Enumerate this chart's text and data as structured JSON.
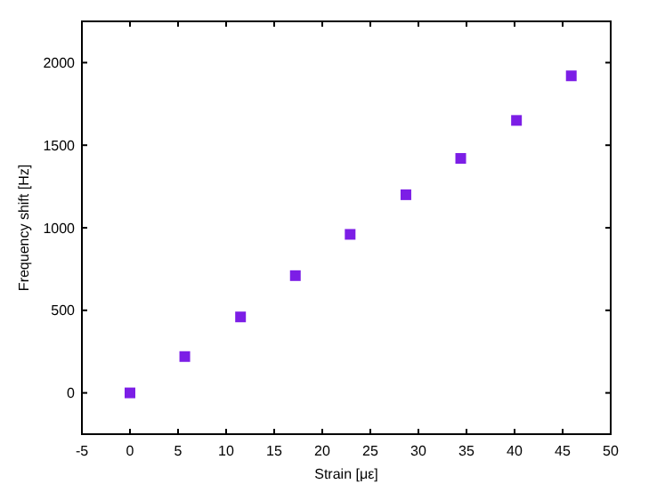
{
  "chart_data": {
    "type": "scatter",
    "xlabel": "Strain [με]",
    "ylabel": "Frequency shift [Hz]",
    "x": [
      0,
      5.7,
      11.5,
      17.2,
      22.9,
      28.7,
      34.4,
      40.2,
      45.9
    ],
    "series": [
      {
        "color": "#7c1ee6",
        "values": [
          0,
          220,
          460,
          710,
          960,
          1200,
          1420,
          1650,
          1920
        ]
      }
    ],
    "xlim": [
      -5,
      50
    ],
    "xticks": [
      -5,
      0,
      5,
      10,
      15,
      20,
      25,
      30,
      35,
      40,
      45,
      50
    ],
    "ylim": [
      -250,
      2250
    ],
    "yticks": [
      0,
      500,
      1000,
      1500,
      2000
    ],
    "marker": "square",
    "grid": false
  }
}
